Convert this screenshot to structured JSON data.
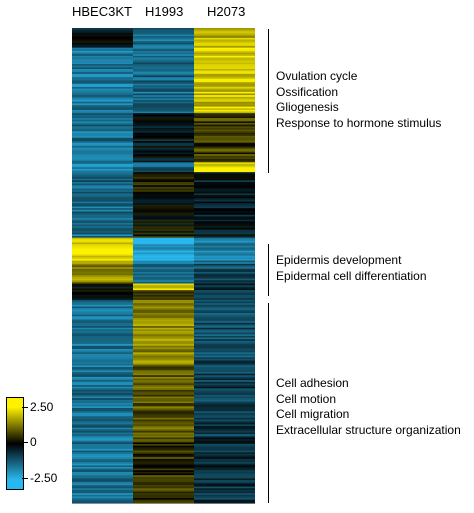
{
  "chart_data": {
    "type": "heatmap",
    "columns": [
      "HBEC3KT",
      "H1993",
      "H2073"
    ],
    "color_scale": {
      "min": -2.5,
      "max": 2.5,
      "colors": {
        "low": "#29b8ee",
        "mid": "#000000",
        "high": "#fff200"
      },
      "tick_labels": [
        "2.50",
        "0",
        "-2.50"
      ],
      "tick_values": [
        2.5,
        0,
        -2.5
      ]
    },
    "clusters": [
      {
        "terms": [
          "Ovulation cycle",
          "Ossification",
          "Gliogenesis",
          "Response to hormone stimulus"
        ],
        "pattern": [
          {
            "rows": 12,
            "values": [
              -0.2,
              -1.5,
              1.8
            ]
          },
          {
            "rows": 40,
            "values": [
              -1.6,
              -1.4,
              2.0
            ]
          },
          {
            "rows": 30,
            "values": [
              -1.5,
              -0.3,
              0.6
            ]
          },
          {
            "rows": 6,
            "values": [
              -2.0,
              -1.2,
              2.4
            ]
          },
          {
            "rows": 14,
            "values": [
              -1.4,
              0.2,
              -0.4
            ]
          }
        ]
      },
      {
        "terms": [
          "",
          "",
          ""
        ],
        "pattern": [
          {
            "rows": 26,
            "values": [
              -1.5,
              0.1,
              -0.3
            ]
          }
        ]
      },
      {
        "terms": [
          "Epidermis development",
          "Epidermal cell differentiation"
        ],
        "pattern": [
          {
            "rows": 16,
            "values": [
              2.3,
              -2.2,
              -1.6
            ]
          },
          {
            "rows": 12,
            "values": [
              1.4,
              -1.6,
              -1.0
            ]
          }
        ]
      },
      {
        "terms": [
          "Cell adhesion",
          "Cell motion",
          "Cell migration",
          "Extracellular structure organization"
        ],
        "pattern": [
          {
            "rows": 4,
            "values": [
              -0.2,
              2.3,
              -0.6
            ]
          },
          {
            "rows": 6,
            "values": [
              -0.1,
              0.4,
              -0.8
            ]
          },
          {
            "rows": 40,
            "values": [
              -1.6,
              1.4,
              -1.0
            ]
          },
          {
            "rows": 44,
            "values": [
              -1.5,
              0.9,
              -0.8
            ]
          },
          {
            "rows": 40,
            "values": [
              -1.5,
              0.5,
              -0.6
            ]
          }
        ]
      }
    ]
  }
}
